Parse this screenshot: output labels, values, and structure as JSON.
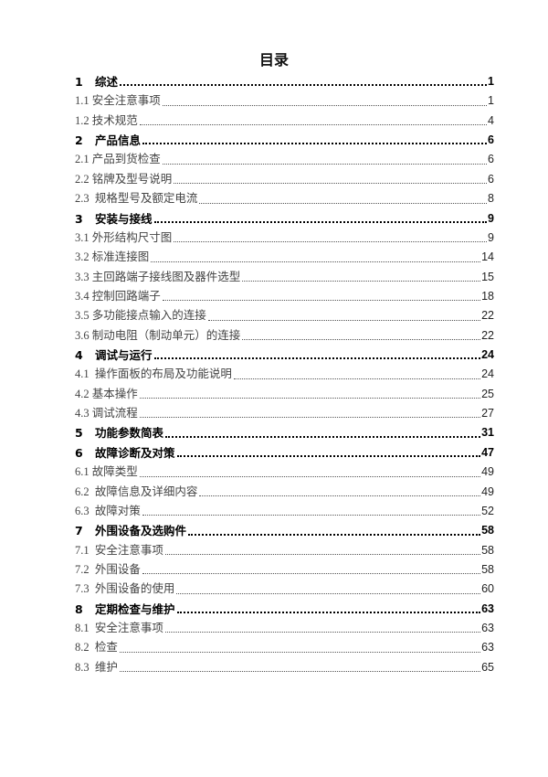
{
  "title": "目录",
  "entries": [
    {
      "num": "1",
      "text": "综述",
      "page": "1",
      "level": 1
    },
    {
      "num": "1.1",
      "text": "安全注意事项",
      "page": "1",
      "level": 2
    },
    {
      "num": "1.2",
      "text": "技术规范",
      "page": "4",
      "level": 2
    },
    {
      "num": "2",
      "text": "产品信息",
      "page": "6",
      "level": 1
    },
    {
      "num": "2.1",
      "text": "产品到货检查",
      "page": "6",
      "level": 2
    },
    {
      "num": "2.2",
      "text": "铭牌及型号说明",
      "page": "6",
      "level": 2
    },
    {
      "num": "2.3",
      "text": " 规格型号及额定电流",
      "page": "8",
      "level": 2
    },
    {
      "num": "3",
      "text": "安装与接线",
      "page": "9",
      "level": 1
    },
    {
      "num": "3.1",
      "text": "外形结构尺寸图",
      "page": "9",
      "level": 2
    },
    {
      "num": "3.2",
      "text": "标准连接图",
      "page": "14",
      "level": 2
    },
    {
      "num": "3.3",
      "text": "主回路端子接线图及器件选型",
      "page": "15",
      "level": 2
    },
    {
      "num": "3.4",
      "text": "控制回路端子",
      "page": "18",
      "level": 2
    },
    {
      "num": "3.5",
      "text": "多功能接点输入的连接",
      "page": "22",
      "level": 2
    },
    {
      "num": "3.6",
      "text": "制动电阻（制动单元）的连接",
      "page": "22",
      "level": 2
    },
    {
      "num": "4",
      "text": "调试与运行",
      "page": "24",
      "level": 1
    },
    {
      "num": "4.1",
      "text": " 操作面板的布局及功能说明",
      "page": "24",
      "level": 2
    },
    {
      "num": "4.2",
      "text": "基本操作",
      "page": "25",
      "level": 2
    },
    {
      "num": "4.3",
      "text": "调试流程",
      "page": "27",
      "level": 2
    },
    {
      "num": "5",
      "text": "功能参数简表",
      "page": "31",
      "level": 1
    },
    {
      "num": "6",
      "text": "故障诊断及对策",
      "page": "47",
      "level": 1
    },
    {
      "num": "6.1",
      "text": "故障类型",
      "page": "49",
      "level": 2
    },
    {
      "num": "6.2",
      "text": " 故障信息及详细内容",
      "page": "49",
      "level": 2
    },
    {
      "num": "6.3",
      "text": " 故障对策",
      "page": "52",
      "level": 2
    },
    {
      "num": "7",
      "text": "外围设备及选购件",
      "page": "58",
      "level": 1
    },
    {
      "num": "7.1",
      "text": " 安全注意事项",
      "page": "58",
      "level": 2
    },
    {
      "num": "7.2",
      "text": " 外围设备",
      "page": "58",
      "level": 2
    },
    {
      "num": "7.3",
      "text": " 外围设备的使用",
      "page": "60",
      "level": 2
    },
    {
      "num": "8",
      "text": "定期检查与维护",
      "page": "63",
      "level": 1
    },
    {
      "num": "8.1",
      "text": " 安全注意事项",
      "page": "63",
      "level": 2
    },
    {
      "num": "8.2",
      "text": " 检查",
      "page": "63",
      "level": 2
    },
    {
      "num": "8.3",
      "text": " 维护",
      "page": "65",
      "level": 2
    }
  ]
}
